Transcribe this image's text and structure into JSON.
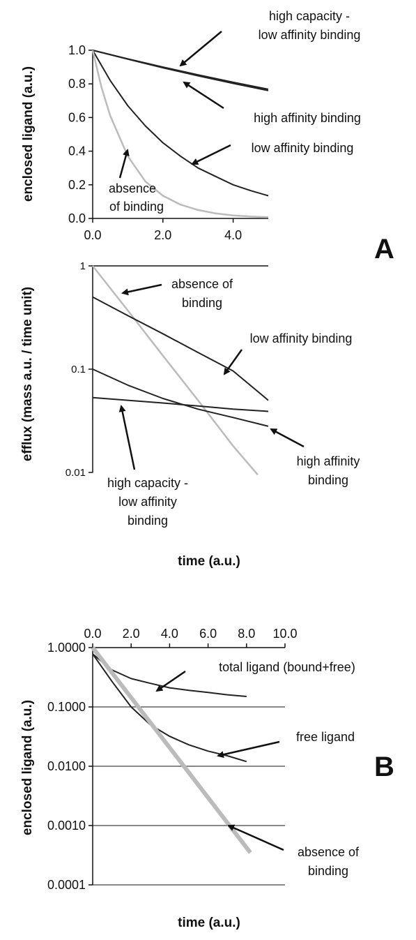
{
  "chart_data": [
    {
      "panel": "A",
      "type": "line",
      "ylabel": "enclosed  ligand (a.u.)",
      "xlim": [
        0,
        5
      ],
      "ylim": [
        0,
        1
      ],
      "xticks": [
        "0.0",
        "2.0",
        "4.0"
      ],
      "yticks": [
        "0.0",
        "0.2",
        "0.4",
        "0.6",
        "0.8",
        "1.0"
      ],
      "series": [
        {
          "name": "high capacity - low affinity binding",
          "color": "#222222",
          "x": [
            0,
            1,
            2,
            3,
            4,
            5
          ],
          "y": [
            1.0,
            0.949,
            0.9,
            0.854,
            0.81,
            0.768
          ]
        },
        {
          "name": "high affinity binding",
          "color": "#222222",
          "x": [
            0,
            1,
            2,
            3,
            4,
            5
          ],
          "y": [
            1.0,
            0.947,
            0.896,
            0.848,
            0.803,
            0.76
          ]
        },
        {
          "name": "low affinity binding",
          "color": "#222222",
          "x": [
            0,
            0.5,
            1,
            1.5,
            2,
            2.5,
            3,
            3.5,
            4,
            4.5,
            5
          ],
          "y": [
            1.0,
            0.82,
            0.67,
            0.55,
            0.45,
            0.37,
            0.3,
            0.25,
            0.2,
            0.165,
            0.135
          ]
        },
        {
          "name": "absence of binding",
          "color": "#bbbbbb",
          "x": [
            0,
            0.25,
            0.5,
            1,
            1.5,
            2,
            2.5,
            3,
            3.5,
            4,
            4.5,
            5
          ],
          "y": [
            1.0,
            0.78,
            0.61,
            0.37,
            0.22,
            0.135,
            0.082,
            0.05,
            0.03,
            0.018,
            0.011,
            0.007
          ]
        }
      ],
      "annotations": [
        "high capacity -",
        "low affinity binding",
        "high affinity binding",
        "low affinity binding",
        "absence",
        "of binding"
      ]
    },
    {
      "panel": "A",
      "type": "line",
      "yscale": "log",
      "ylabel": "efflux (mass a.u. /  time unit)",
      "xlabel": "time (a.u.)",
      "xlim": [
        0,
        5
      ],
      "ylim": [
        0.01,
        1
      ],
      "yticks": [
        "1",
        "0.1",
        "0.01"
      ],
      "series": [
        {
          "name": "absence of binding",
          "color": "#bbbbbb",
          "x": [
            0,
            1,
            2,
            3,
            4,
            4.7
          ],
          "y": [
            1.0,
            0.37,
            0.135,
            0.05,
            0.018,
            0.0095
          ]
        },
        {
          "name": "low affinity binding",
          "color": "#222222",
          "x": [
            0,
            1,
            2,
            3,
            4,
            5
          ],
          "y": [
            0.5,
            0.33,
            0.22,
            0.145,
            0.096,
            0.05
          ]
        },
        {
          "name": "high affinity binding",
          "color": "#222222",
          "x": [
            0,
            1,
            2,
            3,
            4,
            5
          ],
          "y": [
            0.1,
            0.07,
            0.052,
            0.041,
            0.034,
            0.028
          ]
        },
        {
          "name": "high capacity - low affinity binding",
          "color": "#222222",
          "x": [
            0,
            1,
            2,
            3,
            4,
            5
          ],
          "y": [
            0.053,
            0.05,
            0.047,
            0.044,
            0.041,
            0.039
          ]
        }
      ],
      "annotations": [
        "absence of",
        "binding",
        "low affinity binding",
        "high affinity",
        "binding",
        "high capacity -",
        "low affinity",
        "binding"
      ]
    },
    {
      "panel": "B",
      "type": "line",
      "yscale": "log",
      "ylabel": "enclosed ligand (a.u.)",
      "xlabel": "time (a.u.)",
      "xlim": [
        0,
        10
      ],
      "ylim": [
        0.0001,
        1
      ],
      "xticks": [
        "0.0",
        "2.0",
        "4.0",
        "6.0",
        "8.0",
        "10.0"
      ],
      "yticks": [
        "1.0000",
        "0.1000",
        "0.0100",
        "0.0010",
        "0.0001"
      ],
      "grid": true,
      "series": [
        {
          "name": "total ligand (bound+free)",
          "color": "#222222",
          "x": [
            0,
            1,
            2,
            3,
            4,
            5,
            6,
            7,
            8
          ],
          "y": [
            0.78,
            0.42,
            0.3,
            0.25,
            0.21,
            0.19,
            0.175,
            0.16,
            0.15
          ]
        },
        {
          "name": "free ligand",
          "color": "#222222",
          "x": [
            0,
            1,
            2,
            3,
            4,
            5,
            6,
            7,
            8
          ],
          "y": [
            0.78,
            0.27,
            0.1,
            0.05,
            0.032,
            0.023,
            0.018,
            0.015,
            0.012
          ]
        },
        {
          "name": "absence of binding",
          "color": "#bbbbbb",
          "x": [
            0,
            8.2
          ],
          "y": [
            1.0,
            0.00035
          ]
        }
      ],
      "annotations": [
        "total ligand (bound+free)",
        "free ligand",
        "absence of",
        "binding"
      ]
    }
  ],
  "labels": {
    "panelA": "A",
    "panelB": "B"
  }
}
